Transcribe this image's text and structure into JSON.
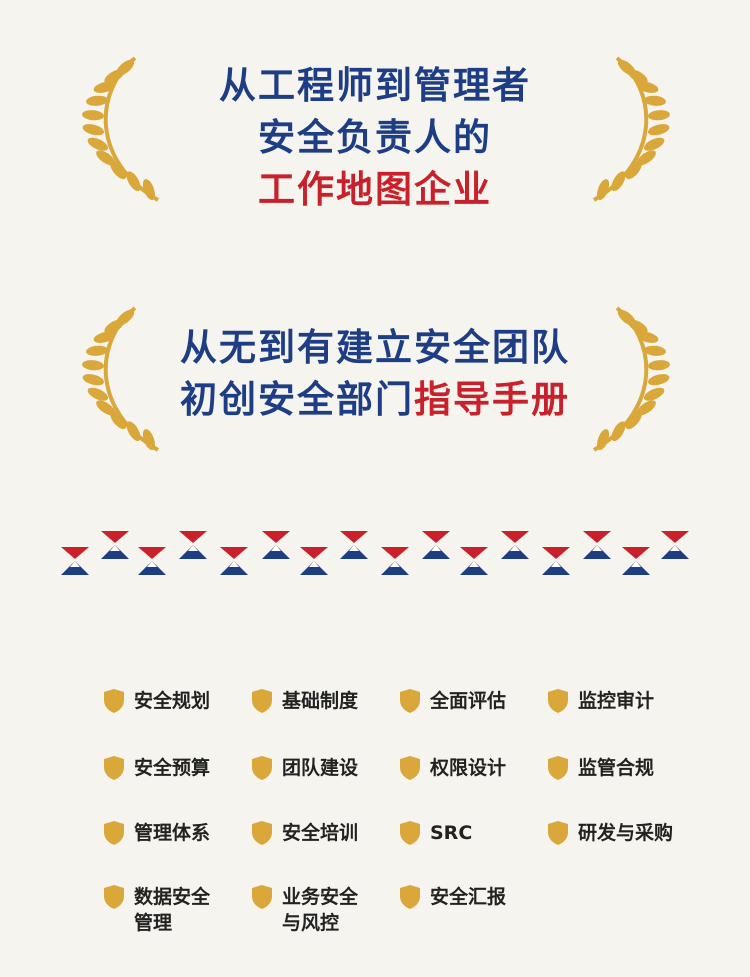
{
  "headline_1": {
    "line1": "从工程师到管理者",
    "line2": "安全负责人的",
    "line3": "工作地图企业"
  },
  "headline_2": {
    "line1": "从无到有建立安全团队",
    "line2_blue": "初创安全部门",
    "line2_red": "指导手册"
  },
  "colors": {
    "blue": "#1d3d84",
    "red": "#c8212b",
    "gold": "#d9a73a",
    "background": "#f6f4ee"
  },
  "topics": [
    {
      "label": "安全规划",
      "icon": "shield-icon"
    },
    {
      "label": "基础制度",
      "icon": "shield-icon"
    },
    {
      "label": "全面评估",
      "icon": "shield-icon"
    },
    {
      "label": "监控审计",
      "icon": "shield-icon"
    },
    {
      "label": "安全预算",
      "icon": "shield-icon"
    },
    {
      "label": "团队建设",
      "icon": "shield-icon"
    },
    {
      "label": "权限设计",
      "icon": "shield-icon"
    },
    {
      "label": "监管合规",
      "icon": "shield-icon"
    },
    {
      "label": "管理体系",
      "icon": "shield-icon"
    },
    {
      "label": "安全培训",
      "icon": "shield-icon"
    },
    {
      "label": "SRC",
      "icon": "shield-icon"
    },
    {
      "label": "研发与采购",
      "icon": "shield-icon"
    },
    {
      "label": "数据安全\n管理",
      "icon": "shield-icon"
    },
    {
      "label": "业务安全\n与风控",
      "icon": "shield-icon"
    },
    {
      "label": "安全汇报",
      "icon": "shield-icon"
    }
  ]
}
